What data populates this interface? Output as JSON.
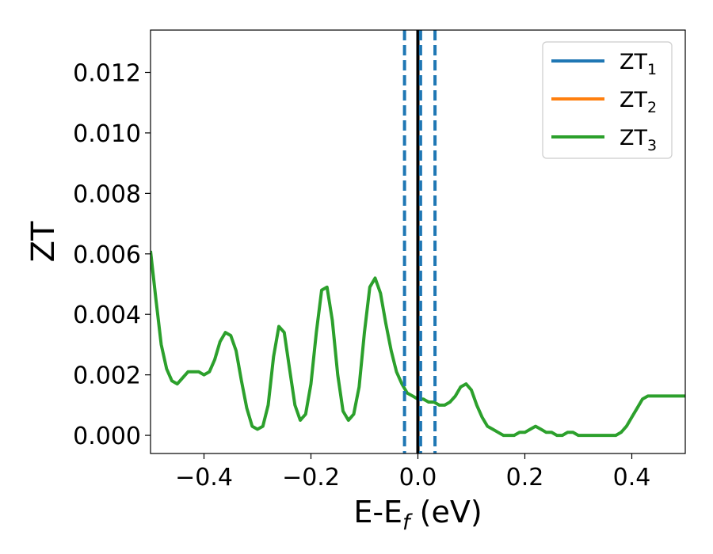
{
  "chart_data": {
    "type": "line",
    "xlabel": {
      "main": "E-E",
      "sub": "f",
      "suffix": " (eV)"
    },
    "ylabel": "ZT",
    "xlim": [
      -0.5,
      0.5
    ],
    "ylim": [
      -0.0006,
      0.0134
    ],
    "xticks": [
      -0.4,
      -0.2,
      0.0,
      0.2,
      0.4
    ],
    "xtick_labels": [
      "−0.4",
      "−0.2",
      "0.0",
      "0.2",
      "0.4"
    ],
    "yticks": [
      0.0,
      0.002,
      0.004,
      0.006,
      0.008,
      0.01,
      0.012
    ],
    "ytick_labels": [
      "0.000",
      "0.002",
      "0.004",
      "0.006",
      "0.008",
      "0.010",
      "0.012"
    ],
    "grid": false,
    "legend_position": "top-right",
    "series": [
      {
        "name": "ZT",
        "subscript": "1",
        "color": "#1f77b4",
        "line_style": "solid"
      },
      {
        "name": "ZT",
        "subscript": "2",
        "color": "#ff7f0e",
        "line_style": "solid"
      },
      {
        "name": "ZT",
        "subscript": "3",
        "color": "#2ca02c",
        "line_style": "solid",
        "x": [
          -0.5,
          -0.49,
          -0.48,
          -0.47,
          -0.46,
          -0.45,
          -0.44,
          -0.43,
          -0.42,
          -0.41,
          -0.4,
          -0.39,
          -0.38,
          -0.37,
          -0.36,
          -0.35,
          -0.34,
          -0.33,
          -0.32,
          -0.31,
          -0.3,
          -0.29,
          -0.28,
          -0.27,
          -0.26,
          -0.25,
          -0.24,
          -0.23,
          -0.22,
          -0.21,
          -0.2,
          -0.19,
          -0.18,
          -0.17,
          -0.16,
          -0.15,
          -0.14,
          -0.13,
          -0.12,
          -0.11,
          -0.1,
          -0.09,
          -0.08,
          -0.07,
          -0.06,
          -0.05,
          -0.04,
          -0.03,
          -0.02,
          -0.01,
          0.0,
          0.01,
          0.02,
          0.03,
          0.04,
          0.05,
          0.06,
          0.07,
          0.08,
          0.09,
          0.1,
          0.11,
          0.12,
          0.13,
          0.14,
          0.15,
          0.16,
          0.17,
          0.18,
          0.19,
          0.2,
          0.21,
          0.22,
          0.23,
          0.24,
          0.25,
          0.26,
          0.27,
          0.28,
          0.29,
          0.3,
          0.31,
          0.32,
          0.33,
          0.34,
          0.35,
          0.36,
          0.37,
          0.38,
          0.39,
          0.4,
          0.41,
          0.42,
          0.43,
          0.44,
          0.45,
          0.46,
          0.47,
          0.48,
          0.49,
          0.5
        ],
        "y": [
          0.0061,
          0.0045,
          0.003,
          0.0022,
          0.0018,
          0.0017,
          0.0019,
          0.0021,
          0.0021,
          0.0021,
          0.002,
          0.0021,
          0.0025,
          0.0031,
          0.0034,
          0.0033,
          0.0028,
          0.0018,
          0.0009,
          0.0003,
          0.0002,
          0.0003,
          0.001,
          0.0026,
          0.0036,
          0.0034,
          0.0022,
          0.001,
          0.0005,
          0.0007,
          0.0017,
          0.0034,
          0.0048,
          0.0049,
          0.0038,
          0.002,
          0.0008,
          0.0005,
          0.0007,
          0.0016,
          0.0034,
          0.0049,
          0.0052,
          0.0047,
          0.0037,
          0.0028,
          0.0021,
          0.0017,
          0.0014,
          0.0013,
          0.0012,
          0.0012,
          0.0011,
          0.0011,
          0.001,
          0.001,
          0.0011,
          0.0013,
          0.0016,
          0.0017,
          0.0015,
          0.001,
          0.0006,
          0.0003,
          0.0002,
          0.0001,
          0.0,
          0.0,
          0.0,
          0.0001,
          0.0001,
          0.0002,
          0.0003,
          0.0002,
          0.0001,
          0.0001,
          0.0,
          0.0,
          0.0001,
          0.0001,
          0.0,
          0.0,
          0.0,
          0.0,
          0.0,
          0.0,
          0.0,
          0.0,
          0.0001,
          0.0003,
          0.0006,
          0.0009,
          0.0012,
          0.0013,
          0.0013,
          0.0013,
          0.0013,
          0.0013,
          0.0013,
          0.0013,
          0.0013
        ]
      }
    ],
    "vertical_lines": [
      {
        "x": 0.0,
        "color": "#000000",
        "line_style": "solid"
      },
      {
        "x": -0.025,
        "color": "#1f77b4",
        "line_style": "dashed"
      },
      {
        "x": 0.005,
        "color": "#1f77b4",
        "line_style": "dashed"
      },
      {
        "x": 0.032,
        "color": "#1f77b4",
        "line_style": "dashed"
      }
    ]
  }
}
